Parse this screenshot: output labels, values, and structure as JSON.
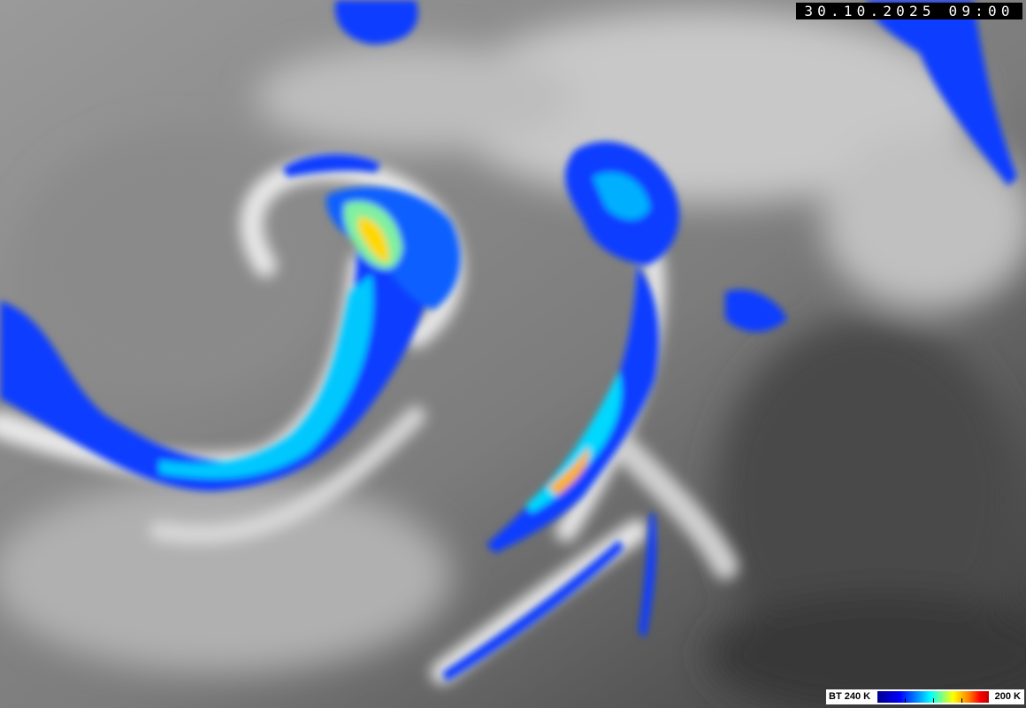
{
  "image": {
    "kind": "infrared satellite imagery",
    "timestamp": "30.10.2025 09:00",
    "colors": {
      "background_gray": "#7a7a7a",
      "cold_blue": "#0000ff",
      "cyan": "#00ffff",
      "yellow": "#ffff00",
      "red": "#ff0000"
    }
  },
  "legend": {
    "left_label": "BT 240 K",
    "right_label": "200 K",
    "colormap": [
      "#00008c",
      "#0000ff",
      "#00a0ff",
      "#00ffff",
      "#80ff80",
      "#ffff00",
      "#ff8000",
      "#ff0000"
    ]
  }
}
